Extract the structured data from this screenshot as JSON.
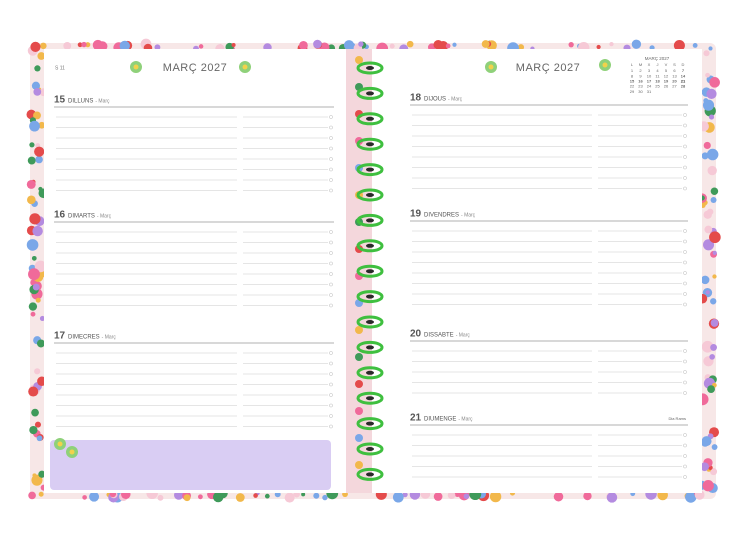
{
  "left_page": {
    "week": "S 11",
    "month": "MARÇ 2027",
    "days": [
      {
        "number": "15",
        "name": "DILLUNS",
        "month": "- Març"
      },
      {
        "number": "16",
        "name": "DIMARTS",
        "month": "- Març"
      },
      {
        "number": "17",
        "name": "DIMECRES",
        "month": "- Març"
      }
    ]
  },
  "right_page": {
    "month": "MARÇ 2027",
    "mini_calendar": {
      "title": "MARÇ 2027",
      "weekdays": [
        "L",
        "M",
        "X",
        "J",
        "V",
        "S",
        "D"
      ],
      "dates": [
        1,
        2,
        3,
        4,
        5,
        6,
        7,
        8,
        9,
        10,
        11,
        12,
        13,
        14,
        15,
        16,
        17,
        18,
        19,
        20,
        21,
        22,
        23,
        24,
        25,
        26,
        27,
        28,
        29,
        30,
        31
      ]
    },
    "days": [
      {
        "number": "18",
        "name": "DIJOUS",
        "month": "- Març"
      },
      {
        "number": "19",
        "name": "DIVENDRES",
        "month": "- Març"
      },
      {
        "number": "20",
        "name": "DISSABTE",
        "month": "- Març"
      },
      {
        "number": "21",
        "name": "DIUMENGE",
        "month": "- Març",
        "note": "Dia Rams"
      }
    ]
  }
}
